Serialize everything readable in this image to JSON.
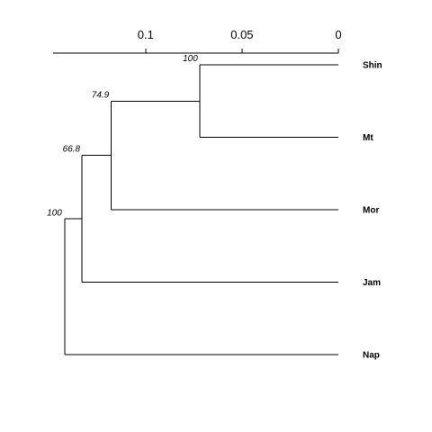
{
  "scale_axis": {
    "ticks": [
      {
        "value": 0.1,
        "label": "0.1"
      },
      {
        "value": 0.05,
        "label": "0.05"
      },
      {
        "value": 0,
        "label": "0"
      }
    ],
    "range": [
      0.148,
      0
    ]
  },
  "leaves": [
    "Shin",
    "Mt",
    "Mor",
    "Jam",
    "Nap"
  ],
  "clusters": [
    {
      "id": "c1",
      "children": [
        "Shin",
        "Mt"
      ],
      "height": 0.072,
      "support": "100"
    },
    {
      "id": "c2",
      "children": [
        "c1",
        "Mor"
      ],
      "height": 0.118,
      "support": "74.9"
    },
    {
      "id": "c3",
      "children": [
        "c2",
        "Jam"
      ],
      "height": 0.133,
      "support": "66.8"
    },
    {
      "id": "c4",
      "children": [
        "c3",
        "Nap"
      ],
      "height": 0.142,
      "support": "100"
    }
  ]
}
